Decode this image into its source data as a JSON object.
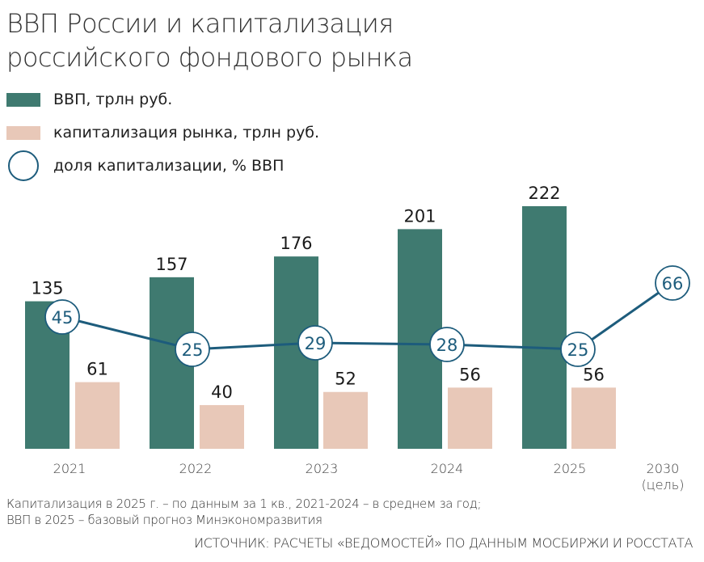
{
  "title_lines": [
    "ВВП России и капитализация",
    "российского фондового рынка"
  ],
  "legend": {
    "gdp": "ВВП, трлн руб.",
    "cap": "капитализация рынка, трлн руб.",
    "share": "доля капитализации, % ВВП"
  },
  "colors": {
    "gdp": "#3f7a70",
    "cap": "#e8c8b8",
    "line": "#1d5c7c",
    "share_text": "#1d5c7c"
  },
  "chart_data": {
    "type": "bar",
    "title": "ВВП России и капитализация российского фондового рынка",
    "categories": [
      "2021",
      "2022",
      "2023",
      "2024",
      "2025",
      "2030"
    ],
    "category_sublabels": [
      "",
      "",
      "",
      "",
      "",
      "(цель)"
    ],
    "series": [
      {
        "name": "ВВП, трлн руб.",
        "type": "bar",
        "values": [
          135,
          157,
          176,
          201,
          222,
          null
        ]
      },
      {
        "name": "капитализация рынка, трлн руб.",
        "type": "bar",
        "values": [
          61,
          40,
          52,
          56,
          56,
          null
        ]
      },
      {
        "name": "доля капитализации, % ВВП",
        "type": "line",
        "values": [
          45,
          25,
          29,
          28,
          25,
          66
        ]
      }
    ],
    "xlabel": "",
    "ylabel": "",
    "grid": false,
    "legend_position": "top-left"
  },
  "notes": [
    "Капитализация в 2025 г. – по данным за 1 кв., 2021-2024 – в среднем за год;",
    "ВВП в 2025 – базовый прогноз Минэкономразвития"
  ],
  "source": "ИСТОЧНИК: РАСЧЕТЫ «ВЕДОМОСТЕЙ» ПО ДАННЫМ МОСБИРЖИ И РОССТАТА"
}
